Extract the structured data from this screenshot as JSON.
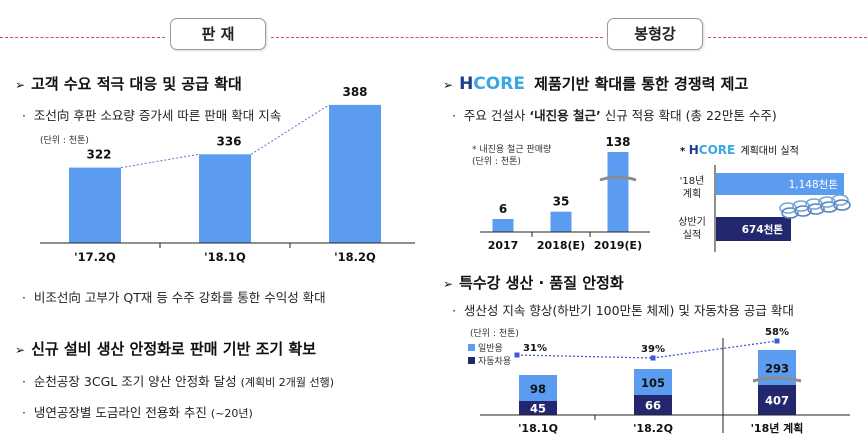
{
  "tabs": {
    "left": "판 재",
    "right": "봉형강"
  },
  "left": {
    "h1": "고객 수요 적극 대응 및 공급 확대",
    "b1": "조선向 후판 소요량 증가세 따른 판매 확대 지속",
    "unit": "(단위 : 천톤)",
    "b2": "비조선向 고부가 QT재 등 수주 강화를 통한 수익성 확대",
    "h2": "신규 설비 생산 안정화로 판매 기반 조기 확보",
    "b3": "순천공장 3CGL 조기 양산 안정화 달성",
    "b3_note": "(계획비 2개월 선행)",
    "b4": "냉연공장별 도금라인 전용화 추진",
    "b4_note": "(~20년)"
  },
  "right": {
    "h1_logo_h": "H",
    "h1_logo_core": "CORE",
    "h1_text": "제품기반 확대를 통한 경쟁력 제고",
    "b1_pre": "주요 건설사 ",
    "b1_bold": "‘내진용 철근’",
    "b1_post": " 신규 적용 확대 (총 22만톤 수주)",
    "mini_title": "* 내진용 철근 판매량",
    "mini_unit": "(단위 : 천톤)",
    "hicore_title_h": "H",
    "hicore_title_core": "CORE",
    "hicore_title_text": "계획대비 실적",
    "hbar": {
      "row1_label_1": "'18년",
      "row1_label_2": "계획",
      "row1_value": "1,148천톤",
      "row2_label_1": "상반기",
      "row2_label_2": "실적",
      "row2_value": "674천톤"
    },
    "h2": "특수강 생산 · 품질 안정화",
    "b2": "생산성 지속 향상(하반기 100만톤 체제) 및 자동차용 공급 확대",
    "unit": "(단위 : 천톤)",
    "legend_general": "일반용",
    "legend_auto": "자동차용"
  },
  "colors": {
    "light_blue": "#5b9cf0",
    "navy": "#23286e",
    "dash_red": "#d4524c",
    "grey_stroke": "#8c8c8c"
  },
  "chart_data": [
    {
      "type": "bar",
      "categories": [
        "'17.2Q",
        "'18.1Q",
        "'18.2Q"
      ],
      "values": [
        322,
        336,
        388
      ],
      "ylabel": "(단위 : 천톤)"
    },
    {
      "type": "bar",
      "title": "* 내진용 철근 판매량",
      "categories": [
        "2017",
        "2018(E)",
        "2019(E)"
      ],
      "values": [
        6,
        35,
        138
      ],
      "ylabel": "(단위 : 천톤)"
    },
    {
      "type": "bar",
      "title": "HCORE 계획대비 실적",
      "categories": [
        "'18년 계획",
        "상반기 실적"
      ],
      "values": [
        1148,
        674
      ],
      "value_labels": [
        "1,148천톤",
        "674천톤"
      ]
    },
    {
      "type": "bar",
      "stacked": true,
      "categories": [
        "'18.1Q",
        "'18.2Q",
        "'18년 계획"
      ],
      "series": [
        {
          "name": "자동차용",
          "values": [
            45,
            66,
            407
          ]
        },
        {
          "name": "일반용",
          "values": [
            98,
            105,
            293
          ]
        }
      ],
      "line_series": {
        "values": [
          "31%",
          "39%",
          "58%"
        ]
      },
      "ylabel": "(단위 : 천톤)"
    }
  ]
}
